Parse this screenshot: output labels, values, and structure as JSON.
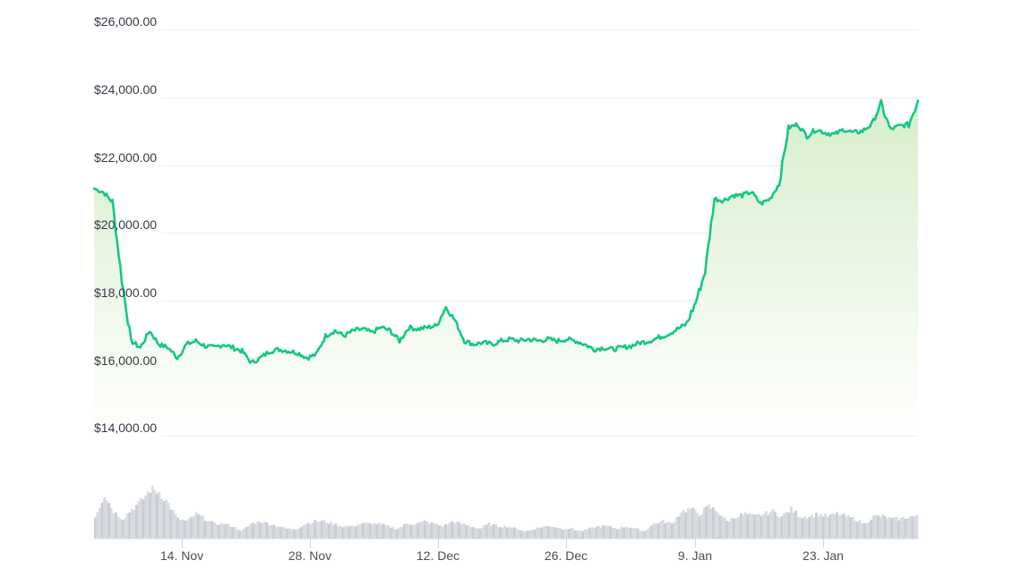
{
  "chart_data": {
    "type": "area",
    "title": "",
    "xlabel": "",
    "ylabel": "",
    "ylim": [
      14000,
      26000
    ],
    "grid": true,
    "legend": null,
    "y_ticks": [
      "$14,000.00",
      "$16,000.00",
      "$18,000.00",
      "$20,000.00",
      "$22,000.00",
      "$24,000.00",
      "$26,000.00"
    ],
    "x_ticks": [
      "14. Nov",
      "28. Nov",
      "12. Dec",
      "26. Dec",
      "9. Jan",
      "23. Jan"
    ],
    "series": [
      {
        "name": "Price (USD)",
        "color": "#16c784",
        "fill_top": "#d9efcf",
        "fill_bottom": "#ffffff",
        "x": [
          "5 Nov",
          "6 Nov",
          "7 Nov",
          "8 Nov",
          "9 Nov",
          "10 Nov",
          "11 Nov",
          "12 Nov",
          "13 Nov",
          "14 Nov",
          "15 Nov",
          "16 Nov",
          "17 Nov",
          "18 Nov",
          "19 Nov",
          "20 Nov",
          "21 Nov",
          "22 Nov",
          "23 Nov",
          "24 Nov",
          "25 Nov",
          "26 Nov",
          "27 Nov",
          "28 Nov",
          "29 Nov",
          "30 Nov",
          "1 Dec",
          "2 Dec",
          "3 Dec",
          "4 Dec",
          "5 Dec",
          "6 Dec",
          "7 Dec",
          "8 Dec",
          "9 Dec",
          "10 Dec",
          "11 Dec",
          "12 Dec",
          "13 Dec",
          "14 Dec",
          "15 Dec",
          "16 Dec",
          "17 Dec",
          "18 Dec",
          "19 Dec",
          "20 Dec",
          "21 Dec",
          "22 Dec",
          "23 Dec",
          "24 Dec",
          "25 Dec",
          "26 Dec",
          "27 Dec",
          "28 Dec",
          "29 Dec",
          "30 Dec",
          "31 Dec",
          "1 Jan",
          "2 Jan",
          "3 Jan",
          "4 Jan",
          "5 Jan",
          "6 Jan",
          "7 Jan",
          "8 Jan",
          "9 Jan",
          "10 Jan",
          "11 Jan",
          "12 Jan",
          "13 Jan",
          "14 Jan",
          "15 Jan",
          "16 Jan",
          "17 Jan",
          "18 Jan",
          "19 Jan",
          "20 Jan",
          "21 Jan",
          "22 Jan",
          "23 Jan",
          "24 Jan",
          "25 Jan",
          "26 Jan",
          "27 Jan",
          "28 Jan",
          "29 Jan",
          "30 Jan",
          "31 Jan",
          "1 Feb",
          "2 Feb"
        ],
        "values": [
          21300,
          21200,
          20900,
          18600,
          16800,
          16600,
          17100,
          16700,
          16600,
          16300,
          16700,
          16800,
          16650,
          16600,
          16700,
          16600,
          16500,
          16150,
          16300,
          16500,
          16550,
          16500,
          16450,
          16300,
          16400,
          16950,
          17100,
          16950,
          17100,
          17150,
          17050,
          17200,
          17100,
          16800,
          17200,
          17150,
          17200,
          17250,
          17800,
          17400,
          16800,
          16700,
          16750,
          16700,
          16800,
          16850,
          16800,
          16850,
          16800,
          16850,
          16800,
          16850,
          16800,
          16700,
          16550,
          16600,
          16550,
          16600,
          16650,
          16750,
          16800,
          16900,
          17000,
          17150,
          17300,
          17950,
          18850,
          21000,
          20950,
          21100,
          21100,
          21200,
          20850,
          21000,
          21450,
          23100,
          23200,
          22850,
          23050,
          22950,
          22900,
          23050,
          22950,
          23000,
          23200,
          23800,
          23050,
          23150,
          23200,
          23900
        ]
      },
      {
        "name": "Volume",
        "color": "#cfd3da",
        "relative_values": [
          0.45,
          0.9,
          0.55,
          0.4,
          0.6,
          0.75,
          1.0,
          0.95,
          0.7,
          0.4,
          0.35,
          0.5,
          0.4,
          0.3,
          0.3,
          0.25,
          0.15,
          0.3,
          0.35,
          0.3,
          0.25,
          0.2,
          0.2,
          0.3,
          0.35,
          0.35,
          0.3,
          0.25,
          0.25,
          0.3,
          0.3,
          0.3,
          0.25,
          0.2,
          0.3,
          0.3,
          0.35,
          0.3,
          0.25,
          0.35,
          0.3,
          0.25,
          0.2,
          0.3,
          0.25,
          0.25,
          0.2,
          0.15,
          0.2,
          0.25,
          0.25,
          0.2,
          0.2,
          0.15,
          0.2,
          0.25,
          0.25,
          0.2,
          0.25,
          0.2,
          0.15,
          0.3,
          0.35,
          0.3,
          0.55,
          0.6,
          0.5,
          0.65,
          0.55,
          0.35,
          0.45,
          0.5,
          0.45,
          0.5,
          0.55,
          0.45,
          0.6,
          0.45,
          0.45,
          0.5,
          0.45,
          0.5,
          0.45,
          0.4,
          0.3,
          0.45,
          0.45,
          0.4,
          0.4,
          0.45
        ]
      }
    ]
  },
  "axis": {
    "y": [
      {
        "label": "$26,000.00",
        "y": 33
      },
      {
        "label": "$24,000.00",
        "y": 109
      },
      {
        "label": "$22,000.00",
        "y": 185
      },
      {
        "label": "$20,000.00",
        "y": 260
      },
      {
        "label": "$18,000.00",
        "y": 336
      },
      {
        "label": "$16,000.00",
        "y": 412
      },
      {
        "label": "$14,000.00",
        "y": 487
      }
    ],
    "x": [
      {
        "label": "14. Nov",
        "x": 203
      },
      {
        "label": "28. Nov",
        "x": 346
      },
      {
        "label": "12. Dec",
        "x": 489
      },
      {
        "label": "26. Dec",
        "x": 632
      },
      {
        "label": "9. Jan",
        "x": 776
      },
      {
        "label": "23. Jan",
        "x": 919
      }
    ]
  }
}
